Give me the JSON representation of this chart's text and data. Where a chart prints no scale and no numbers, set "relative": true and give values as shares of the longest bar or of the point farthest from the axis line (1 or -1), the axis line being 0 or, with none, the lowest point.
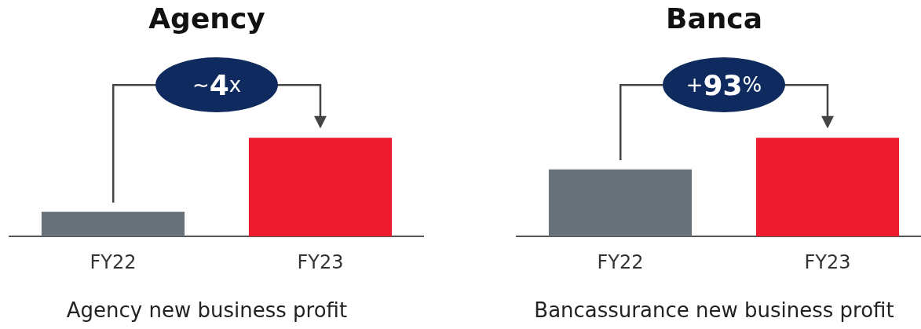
{
  "chart_data": [
    {
      "type": "bar",
      "title": "Agency",
      "categories": [
        "FY22",
        "FY23"
      ],
      "values": [
        0.25,
        1
      ],
      "colors": [
        "#67727a",
        "#ed1c2e"
      ],
      "relative": true,
      "grid": false,
      "legend": false,
      "annotations": [
        "~4x",
        "Agency new business profit"
      ]
    },
    {
      "type": "bar",
      "title": "Banca",
      "categories": [
        "FY22",
        "FY23"
      ],
      "values": [
        0.68,
        1
      ],
      "colors": [
        "#67727a",
        "#ed1c2e"
      ],
      "relative": true,
      "grid": false,
      "legend": false,
      "annotations": [
        "+93%",
        "Bancassurance new business profit"
      ]
    }
  ]
}
